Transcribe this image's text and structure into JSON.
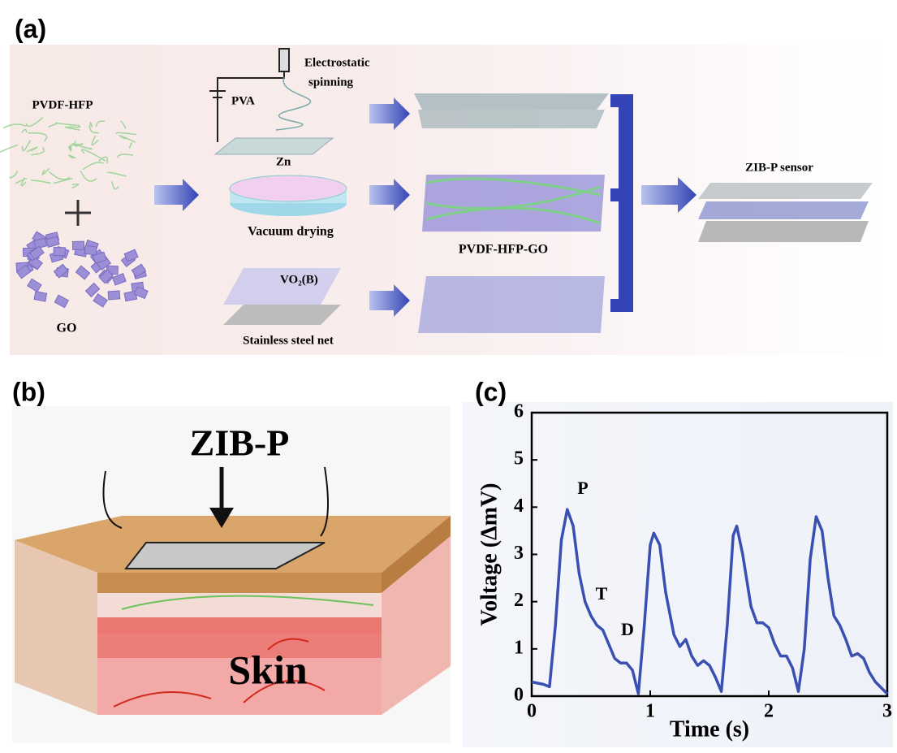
{
  "panel_a": {
    "label": "(a)",
    "pvdf_hfp": "PVDF-HFP",
    "go": "GO",
    "electrostatic": "Electrostatic",
    "spinning": "spinning",
    "pva": "PVA",
    "zn": "Zn",
    "vacuum_drying": "Vacuum drying",
    "vo2b": "VO₂(B)",
    "stainless": "Stainless steel net",
    "pvdf_hfp_go": "PVDF-HFP-GO",
    "sensor": "ZIB-P sensor"
  },
  "panel_b": {
    "label": "(b)",
    "zibp": "ZIB-P",
    "skin": "Skin"
  },
  "panel_c": {
    "label": "(c)"
  },
  "chart_data": {
    "type": "line",
    "xlabel": "Time (s)",
    "ylabel": "Voltage (ΔmV)",
    "annotations": [
      "P",
      "T",
      "D"
    ],
    "x": [
      0,
      0.1,
      0.15,
      0.2,
      0.25,
      0.3,
      0.35,
      0.4,
      0.45,
      0.5,
      0.55,
      0.6,
      0.65,
      0.7,
      0.75,
      0.8,
      0.85,
      0.9,
      0.95,
      1.0,
      1.03,
      1.08,
      1.13,
      1.2,
      1.25,
      1.3,
      1.35,
      1.4,
      1.45,
      1.5,
      1.55,
      1.6,
      1.65,
      1.7,
      1.73,
      1.78,
      1.85,
      1.9,
      1.95,
      2.0,
      2.05,
      2.1,
      2.15,
      2.2,
      2.25,
      2.3,
      2.35,
      2.4,
      2.45,
      2.5,
      2.55,
      2.6,
      2.65,
      2.7,
      2.75,
      2.8,
      2.85,
      2.9,
      3.0
    ],
    "values": [
      0.3,
      0.25,
      0.2,
      1.5,
      3.3,
      3.95,
      3.6,
      2.6,
      2.0,
      1.7,
      1.5,
      1.4,
      1.1,
      0.8,
      0.7,
      0.7,
      0.55,
      0.05,
      1.5,
      3.2,
      3.45,
      3.2,
      2.2,
      1.3,
      1.05,
      1.2,
      0.85,
      0.65,
      0.75,
      0.65,
      0.4,
      0.1,
      1.5,
      3.4,
      3.6,
      3.0,
      1.9,
      1.55,
      1.55,
      1.45,
      1.1,
      0.85,
      0.85,
      0.6,
      0.1,
      1.0,
      2.9,
      3.8,
      3.5,
      2.5,
      1.7,
      1.5,
      1.2,
      0.85,
      0.9,
      0.8,
      0.5,
      0.3,
      0.05
    ],
    "color": "#3a4fb2",
    "xlim": [
      0,
      3
    ],
    "ylim": [
      0,
      6
    ],
    "xticks": [
      0,
      1,
      2,
      3
    ],
    "yticks": [
      0,
      1,
      2,
      3,
      4,
      5,
      6
    ]
  }
}
